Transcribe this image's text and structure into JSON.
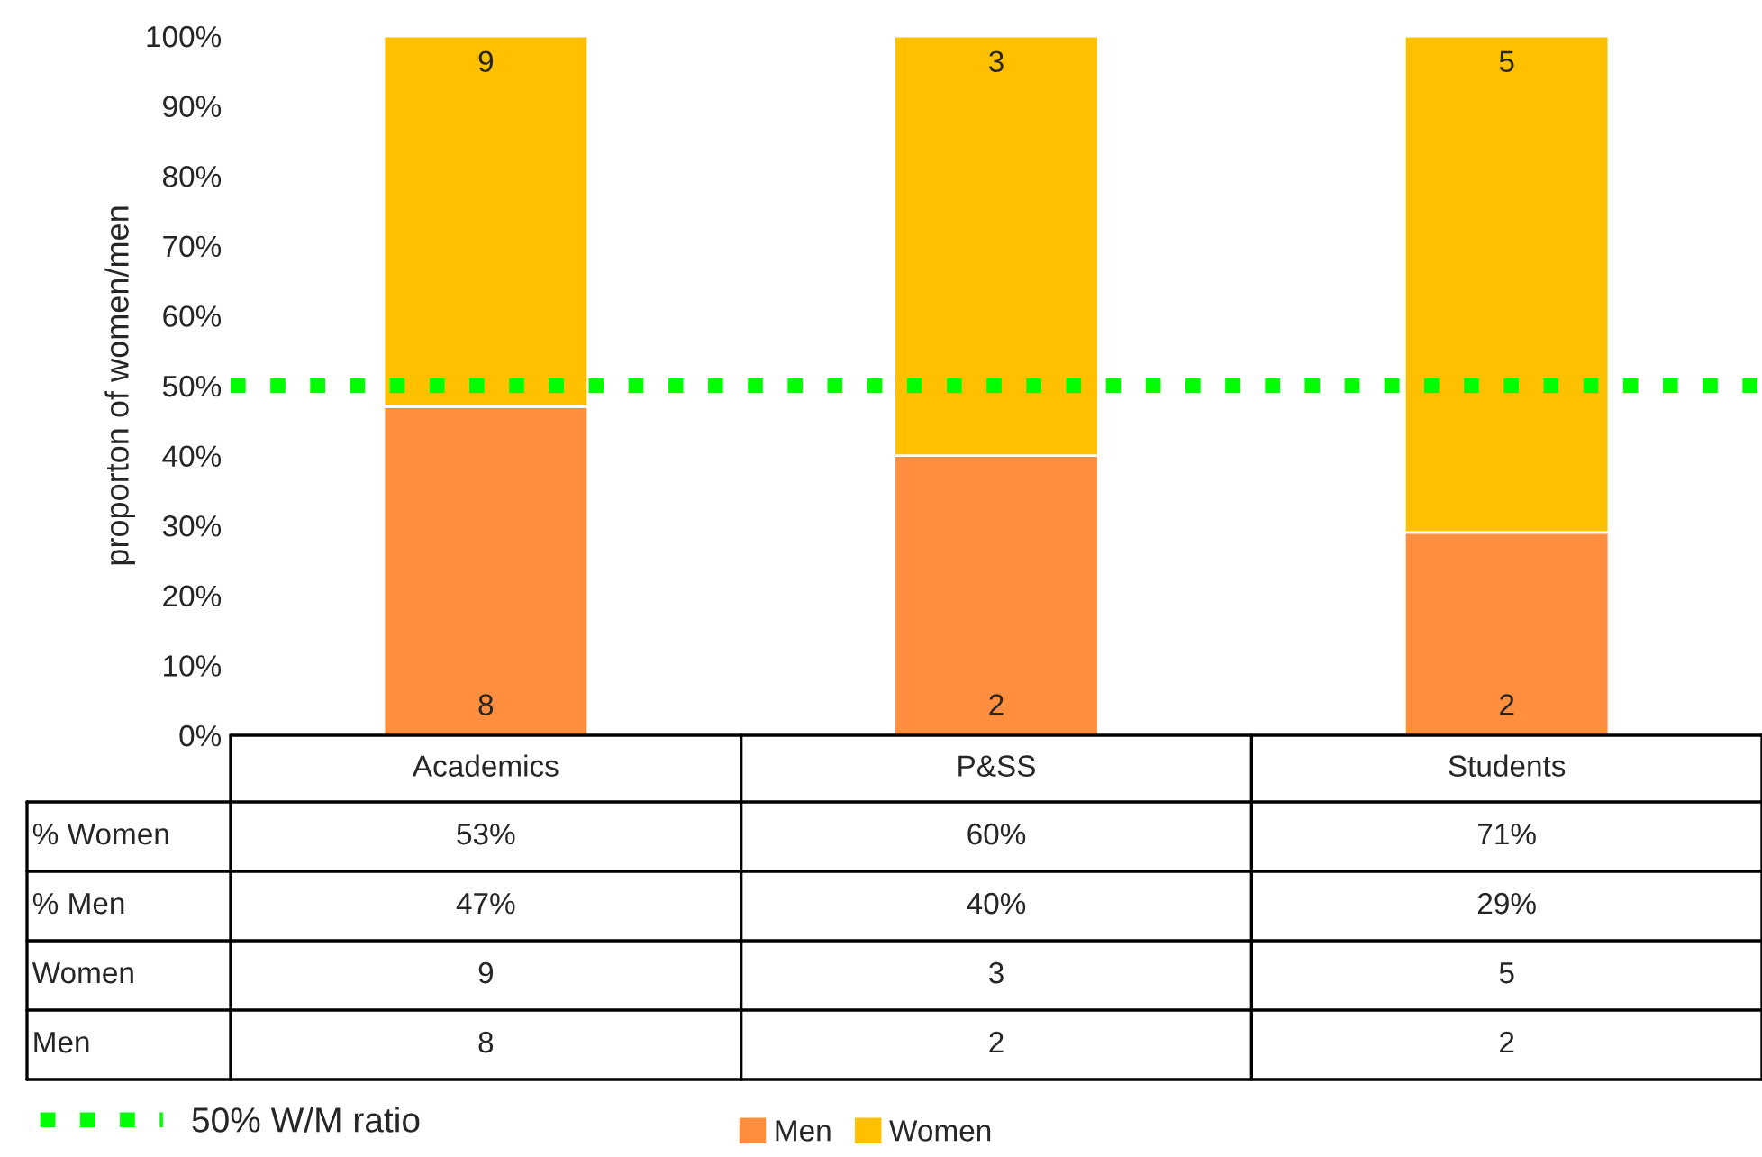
{
  "chart_data": {
    "type": "bar",
    "stacked": true,
    "ylabel": "proporton of women/men",
    "categories": [
      "Academics",
      "P&SS",
      "Students"
    ],
    "series": [
      {
        "name": "Men",
        "color": "#ff8f3f",
        "values": [
          47,
          40,
          29
        ]
      },
      {
        "name": "Women",
        "color": "#ffc000",
        "values": [
          53,
          60,
          71
        ]
      }
    ],
    "ylim": [
      0,
      100
    ],
    "yticks": [
      {
        "value": 0,
        "label": "0%"
      },
      {
        "value": 10,
        "label": "10%"
      },
      {
        "value": 20,
        "label": "20%"
      },
      {
        "value": 30,
        "label": "30%"
      },
      {
        "value": 40,
        "label": "40%"
      },
      {
        "value": 50,
        "label": "50%"
      },
      {
        "value": 60,
        "label": "60%"
      },
      {
        "value": 70,
        "label": "70%"
      },
      {
        "value": 80,
        "label": "80%"
      },
      {
        "value": 90,
        "label": "90%"
      },
      {
        "value": 100,
        "label": "100%"
      }
    ],
    "ref_lines": [
      {
        "axis": "y",
        "value": 50,
        "label": "50% W/M ratio",
        "color": "#00ff00",
        "line_style": "dotted"
      }
    ],
    "annotations": [
      {
        "text": "8",
        "x": "Academics",
        "y": 0
      },
      {
        "text": "2",
        "x": "P&SS",
        "y": 0
      },
      {
        "text": "2",
        "x": "Students",
        "y": 0
      },
      {
        "text": "9",
        "x": "Academics",
        "y": 100
      },
      {
        "text": "3",
        "x": "P&SS",
        "y": 100
      },
      {
        "text": "5",
        "x": "Students",
        "y": 100
      },
      "% Women",
      "53%",
      "60%",
      "71%",
      "% Men",
      "47%",
      "40%",
      "29%",
      "Women",
      "9",
      "3",
      "5",
      "Men",
      "8",
      "2",
      "2"
    ],
    "legend": "bottom",
    "grid": false
  }
}
